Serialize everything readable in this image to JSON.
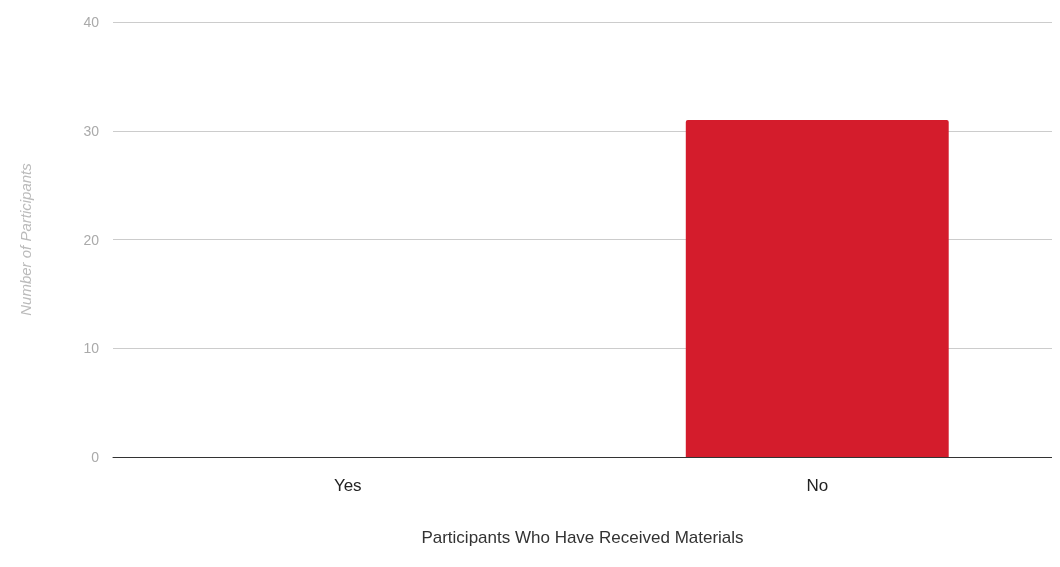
{
  "chart_data": {
    "type": "bar",
    "xlabel": "Participants Who Have Received Materials",
    "ylabel": "Number of Participants",
    "categories": [
      "Yes",
      "No"
    ],
    "values": [
      0,
      31
    ],
    "color": "#d41c2c",
    "ylim": [
      0,
      40
    ],
    "yticks": [
      0,
      10,
      20,
      30,
      40
    ],
    "grid": "y"
  }
}
